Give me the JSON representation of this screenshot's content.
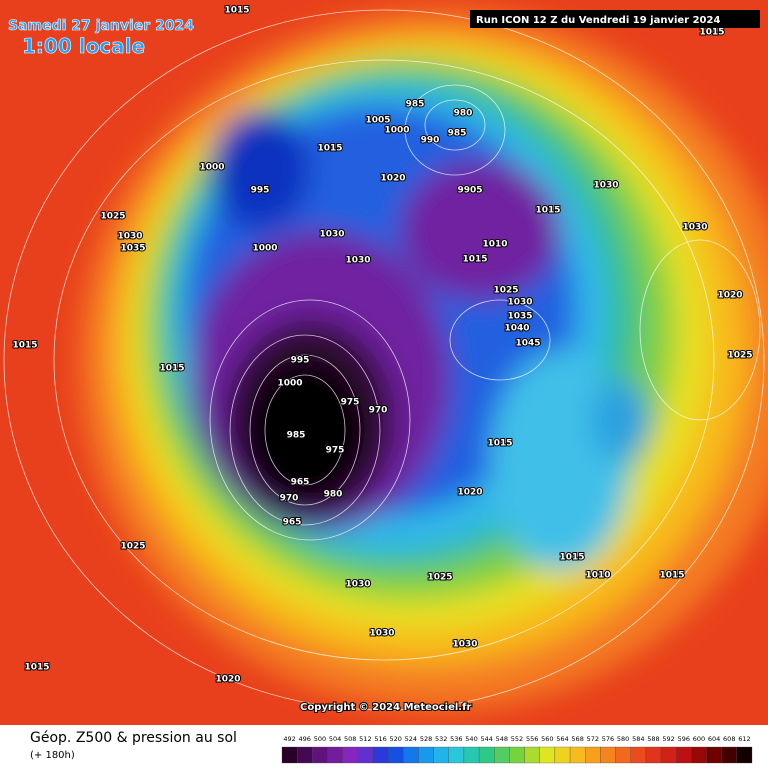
{
  "header": {
    "date": "Samedi 27 janvier 2024",
    "time": "1:00 locale",
    "run": "Run ICON 12 Z du Vendredi 19 janvier 2024"
  },
  "copyright": "Copyright © 2024 Meteociel.fr",
  "footer": {
    "title": "Géop. Z500 & pression au sol",
    "lead": "(+ 180h)"
  },
  "colorbar": {
    "ticks": [
      492,
      496,
      500,
      504,
      508,
      512,
      516,
      520,
      524,
      528,
      532,
      536,
      540,
      544,
      548,
      552,
      556,
      560,
      564,
      568,
      572,
      576,
      580,
      584,
      588,
      592,
      596,
      600,
      604,
      608,
      612
    ]
  },
  "isobar_labels": [
    "1015",
    "1015",
    "985",
    "980",
    "985",
    "990",
    "1005",
    "1000",
    "1015",
    "1000",
    "995",
    "1020",
    "9905",
    "1015",
    "1030",
    "1025",
    "1030",
    "1035",
    "1000",
    "1030",
    "1030",
    "1010",
    "1015",
    "1025",
    "1030",
    "1035",
    "1040",
    "1045",
    "1015",
    "1015",
    "995",
    "1000",
    "975",
    "970",
    "985",
    "975",
    "965",
    "970",
    "965",
    "980",
    "1015",
    "1020",
    "1025",
    "1015",
    "1010",
    "1015",
    "1030",
    "1025",
    "1030",
    "1030",
    "1015",
    "1020",
    "1025",
    "1020",
    "1030"
  ]
}
